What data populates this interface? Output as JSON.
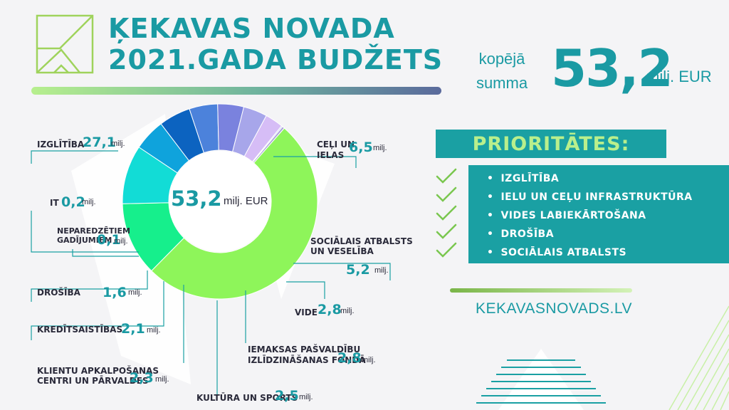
{
  "header": {
    "title_line1": "ĶEKAVAS NOVADA",
    "title_line2": "2021.GADA BUDŽETS",
    "total_label": "kopējā summa",
    "total_value": "53,2",
    "total_unit": "milj. EUR"
  },
  "priorities": {
    "heading": "PRIORITĀTES:",
    "items": [
      "IZGLĪTĪBA",
      "IELU UN CEĻU INFRASTRUKTŪRA",
      "VIDES LABIEKĀRTOŠANA",
      "DROŠĪBA",
      "SOCIĀLAIS ATBALSTS"
    ]
  },
  "website": "KEKAVASNOVADS.LV",
  "center": {
    "value": "53,2",
    "unit": "milj. EUR"
  },
  "colors": {
    "teal": "#1aa0a3",
    "light_green": "#b9ef8c"
  },
  "chart_data": {
    "type": "pie",
    "donut": true,
    "unit": "milj.",
    "slices": [
      {
        "label": "IZGLĪTĪBA",
        "value": 27.1,
        "display": "27,1",
        "color": "#8ef55a"
      },
      {
        "label": "CEĻI UN IELAS",
        "value": 6.5,
        "display": "6,5",
        "color": "#16ef8c"
      },
      {
        "label": "SOCIĀLAIS ATBALSTS UN VESELĪBA",
        "value": 5.2,
        "display": "5,2",
        "color": "#12dcd6"
      },
      {
        "label": "VIDE",
        "value": 2.8,
        "display": "2,8",
        "color": "#0fa3dc"
      },
      {
        "label": "IEMAKSAS PAŠVALDĪBU IZLĪDZINĀŠANAS FONDĀ",
        "value": 2.8,
        "display": "2,8",
        "color": "#0c63c0"
      },
      {
        "label": "KULTŪRA UN SPORTS",
        "value": 2.5,
        "display": "2,5",
        "color": "#4c82db"
      },
      {
        "label": "KLIENTU APKALPOŠANAS CENTRI UN PĀRVALDES",
        "value": 2.3,
        "display": "2,3",
        "color": "#7a82de"
      },
      {
        "label": "KREDĪTSAISTĪBAS",
        "value": 2.1,
        "display": "2,1",
        "color": "#a7a6ea"
      },
      {
        "label": "DROŠĪBA",
        "value": 1.6,
        "display": "1,6",
        "color": "#d6bdf6"
      },
      {
        "label": "NEPAREDZĒTIEM GADĪJUMIEM",
        "value": 0.1,
        "display": "0,1",
        "color": "#bfc9e8"
      },
      {
        "label": "IT",
        "value": 0.2,
        "display": "0,2",
        "color": "#a9a3d8"
      }
    ]
  },
  "labels": {
    "izglitiba": {
      "name": "IZGLĪTĪBA",
      "value": "27,1",
      "unit": "milj."
    },
    "celi": {
      "name1": "CEĻI UN",
      "name2": "IELAS",
      "value": "6,5",
      "unit": "milj."
    },
    "it": {
      "name": "IT",
      "value": "0,2",
      "unit": "milj."
    },
    "neparedzetiem": {
      "name1": "NEPAREDZĒTIEM",
      "name2": "GADĪJUMIEM",
      "value": "0,1",
      "unit": "milj."
    },
    "socialais": {
      "name1": "SOCIĀLAIS ATBALSTS",
      "name2": "UN VESELĪBA",
      "value": "5,2",
      "unit": "milj."
    },
    "drosiba": {
      "name": "DROŠĪBA",
      "value": "1,6",
      "unit": "milj."
    },
    "vide": {
      "name": "VIDE",
      "value": "2,8",
      "unit": "milj."
    },
    "kreditsaistibas": {
      "name": "KREDĪTSAISTĪBAS",
      "value": "2,1",
      "unit": "milj."
    },
    "iemaksas": {
      "name1": "IEMAKSAS PAŠVALDĪBU",
      "name2": "IZLĪDZINĀŠANAS FONDĀ",
      "value": "2,8",
      "unit": "milj."
    },
    "klientu": {
      "name1": "KLIENTU APKALPOŠANAS",
      "name2": "CENTRI UN PĀRVALDES",
      "value": "2,3",
      "unit": "milj."
    },
    "kultura": {
      "name": "KULTŪRA UN SPORTS",
      "value": "2,5",
      "unit": "milj."
    }
  }
}
